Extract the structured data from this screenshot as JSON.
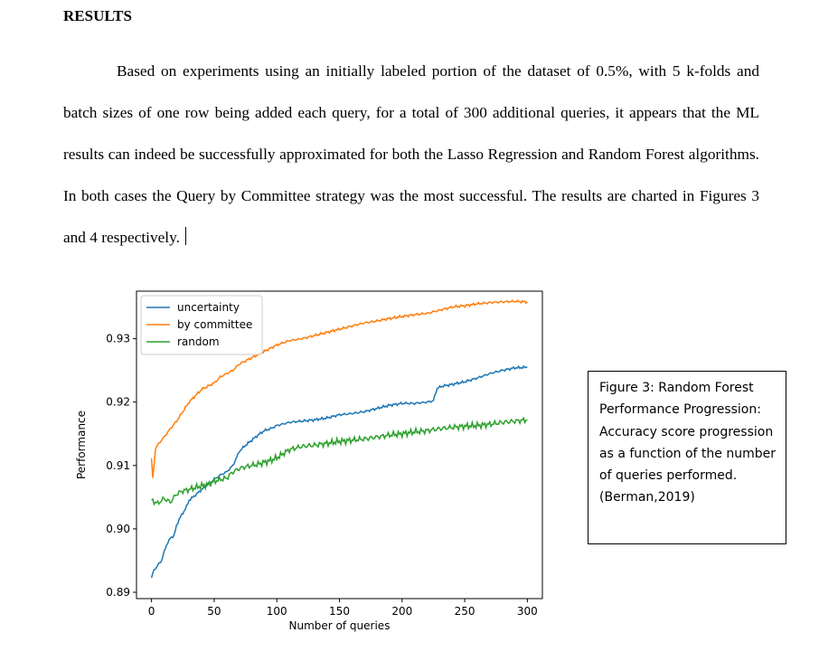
{
  "heading": "RESULTS",
  "paragraph": "Based on experiments using an initially labeled portion of the dataset of 0.5%, with 5 k-folds and batch sizes of one row being added each query, for a total of 300 additional queries, it appears that the ML results can indeed be successfully approximated for both the Lasso Regression and Random Forest algorithms. In both cases the Query by Committee strategy was the most successful. The results are charted in Figures 3 and 4 respectively.",
  "caption": "Figure 3: Random Forest Performance Progression: Accuracy score progression as a function of the number of queries performed. (Berman,2019)",
  "chart_data": {
    "type": "line",
    "xlabel": "Number of queries",
    "ylabel": "Performance",
    "xlim": [
      -12,
      312
    ],
    "ylim": [
      0.889,
      0.9375
    ],
    "xticks": [
      0,
      50,
      100,
      150,
      200,
      250,
      300
    ],
    "yticks": [
      0.89,
      0.9,
      0.91,
      0.92,
      0.93
    ],
    "ytick_labels": [
      "0.89",
      "0.90",
      "0.91",
      "0.92",
      "0.93"
    ],
    "grid": false,
    "legend": "top-left",
    "series": [
      {
        "name": "uncertainty",
        "color": "#1f77b4",
        "x": [
          0,
          2,
          4,
          6,
          8,
          10,
          12,
          15,
          18,
          20,
          22,
          25,
          28,
          30,
          33,
          36,
          40,
          45,
          50,
          55,
          60,
          65,
          70,
          75,
          80,
          85,
          90,
          95,
          100,
          110,
          120,
          130,
          140,
          150,
          160,
          170,
          180,
          190,
          200,
          210,
          220,
          225,
          228,
          232,
          240,
          250,
          260,
          270,
          280,
          290,
          300
        ],
        "y": [
          0.8923,
          0.8935,
          0.894,
          0.8945,
          0.895,
          0.8963,
          0.8975,
          0.8985,
          0.899,
          0.9005,
          0.9015,
          0.9025,
          0.9035,
          0.9045,
          0.905,
          0.9055,
          0.9062,
          0.907,
          0.9078,
          0.9085,
          0.909,
          0.91,
          0.9122,
          0.9132,
          0.914,
          0.9148,
          0.9155,
          0.9158,
          0.9163,
          0.9168,
          0.917,
          0.9172,
          0.9175,
          0.918,
          0.9182,
          0.9185,
          0.919,
          0.9195,
          0.9198,
          0.9198,
          0.92,
          0.9202,
          0.9222,
          0.9225,
          0.9228,
          0.9232,
          0.9238,
          0.9245,
          0.925,
          0.9254,
          0.9255
        ]
      },
      {
        "name": "by committee",
        "color": "#ff7f0e",
        "x": [
          0,
          1,
          2,
          3,
          4,
          6,
          8,
          10,
          12,
          15,
          20,
          25,
          30,
          35,
          40,
          45,
          50,
          55,
          60,
          65,
          70,
          75,
          80,
          90,
          100,
          110,
          120,
          130,
          140,
          150,
          160,
          170,
          180,
          190,
          200,
          210,
          220,
          230,
          240,
          250,
          260,
          270,
          280,
          290,
          300
        ],
        "y": [
          0.911,
          0.908,
          0.91,
          0.9125,
          0.913,
          0.9135,
          0.914,
          0.9145,
          0.915,
          0.9158,
          0.917,
          0.9185,
          0.92,
          0.921,
          0.922,
          0.9225,
          0.923,
          0.924,
          0.9245,
          0.925,
          0.926,
          0.9265,
          0.927,
          0.928,
          0.929,
          0.9297,
          0.93,
          0.9305,
          0.931,
          0.9315,
          0.932,
          0.9325,
          0.9328,
          0.9332,
          0.9335,
          0.9338,
          0.934,
          0.9345,
          0.935,
          0.9352,
          0.9355,
          0.9357,
          0.9358,
          0.9359,
          0.9358
        ]
      },
      {
        "name": "random",
        "color": "#2ca02c",
        "x": [
          0,
          5,
          10,
          15,
          20,
          25,
          30,
          35,
          40,
          45,
          50,
          55,
          60,
          65,
          70,
          75,
          80,
          85,
          90,
          95,
          100,
          110,
          120,
          130,
          140,
          150,
          160,
          170,
          180,
          190,
          200,
          210,
          220,
          230,
          240,
          250,
          260,
          270,
          280,
          290,
          300
        ],
        "y": [
          0.9045,
          0.904,
          0.9048,
          0.9042,
          0.9055,
          0.906,
          0.9062,
          0.9065,
          0.9068,
          0.907,
          0.9075,
          0.9078,
          0.908,
          0.909,
          0.9095,
          0.9098,
          0.91,
          0.9102,
          0.9105,
          0.9108,
          0.9112,
          0.9125,
          0.913,
          0.9132,
          0.9135,
          0.9138,
          0.914,
          0.9142,
          0.9145,
          0.9148,
          0.915,
          0.9153,
          0.9155,
          0.9158,
          0.916,
          0.9162,
          0.9163,
          0.9165,
          0.9168,
          0.917,
          0.9172
        ]
      }
    ]
  }
}
